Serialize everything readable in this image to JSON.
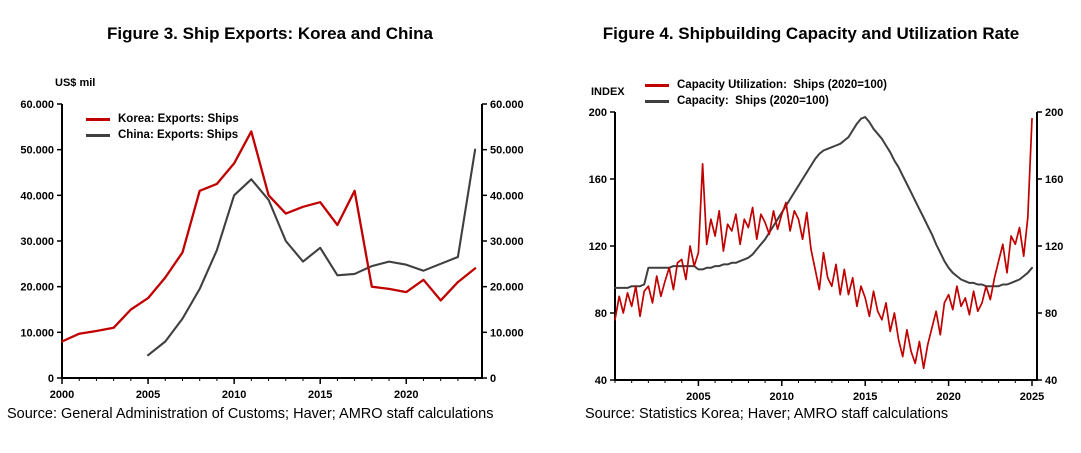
{
  "chart_data": [
    {
      "type": "line",
      "title": "Figure 3. Ship Exports: Korea and China",
      "unit_label": "US$ mil",
      "source": "Source: General Administration of Customs; Haver; AMRO staff calculations",
      "x_range": [
        2000,
        2024.4
      ],
      "ylim": [
        0,
        60000
      ],
      "y_ticks": [
        0,
        10000,
        20000,
        30000,
        40000,
        50000,
        60000
      ],
      "y_tick_labels": [
        "0",
        "10.000",
        "20.000",
        "30.000",
        "40.000",
        "50.000",
        "60.000"
      ],
      "x_ticks": [
        2000,
        2005,
        2010,
        2015,
        2020
      ],
      "legend_position": "top-left-inside",
      "grid": false,
      "series": [
        {
          "name": "Korea: Exports: Ships",
          "color": "#C00000",
          "line_width": 2.3,
          "x_start": 2000,
          "x_step": 1,
          "values": [
            8000,
            9700,
            10300,
            11000,
            15000,
            17500,
            22000,
            27500,
            41000,
            42500,
            47000,
            54000,
            40000,
            36000,
            37500,
            38500,
            33500,
            41000,
            20000,
            19500,
            18800,
            21500,
            17000,
            21000,
            24000
          ]
        },
        {
          "name": "China: Exports: Ships",
          "color": "#3F3F3F",
          "line_width": 2.1,
          "x_start": 2005,
          "x_step": 1,
          "values": [
            5000,
            8000,
            13000,
            19500,
            28000,
            40000,
            43500,
            39000,
            30000,
            25500,
            28500,
            22500,
            22800,
            24500,
            25500,
            24800,
            23500,
            25000,
            26500,
            50000
          ]
        }
      ]
    },
    {
      "type": "line",
      "title": "Figure 4. Shipbuilding Capacity and Utilization Rate",
      "unit_label": "INDEX",
      "source": "Source: Statistics Korea; Haver; AMRO staff calculations",
      "x_range": [
        2000,
        2025.3
      ],
      "ylim": [
        40,
        200
      ],
      "y_ticks": [
        40,
        80,
        120,
        160,
        200
      ],
      "y_tick_labels": [
        "40",
        "80",
        "120",
        "160",
        "200"
      ],
      "x_ticks": [
        2005,
        2010,
        2015,
        2020,
        2025
      ],
      "legend_position": "top-outside",
      "grid": false,
      "series": [
        {
          "name": "Capacity Utilization:  Ships (2020=100)",
          "color": "#C00000",
          "line_width": 1.7,
          "x_start": 2000,
          "x_step": 0.25,
          "values": [
            76,
            90,
            80,
            92,
            84,
            96,
            78,
            93,
            96,
            86,
            102,
            90,
            99,
            107,
            94,
            110,
            112,
            100,
            120,
            108,
            116,
            169,
            121,
            136,
            126,
            141,
            117,
            133,
            129,
            139,
            121,
            136,
            131,
            143,
            124,
            139,
            134,
            127,
            141,
            130,
            139,
            146,
            129,
            141,
            136,
            124,
            140,
            118,
            106,
            94,
            116,
            101,
            96,
            109,
            91,
            106,
            91,
            101,
            84,
            96,
            89,
            78,
            93,
            81,
            76,
            86,
            69,
            80,
            64,
            54,
            70,
            57,
            50,
            63,
            47,
            61,
            71,
            81,
            67,
            86,
            91,
            82,
            96,
            84,
            89,
            79,
            93,
            81,
            86,
            96,
            88,
            101,
            111,
            121,
            104,
            126,
            121,
            131,
            114,
            137,
            196
          ]
        },
        {
          "name": "Capacity:  Ships (2020=100)",
          "color": "#3F3F3F",
          "line_width": 2,
          "x_start": 2000,
          "x_step": 0.25,
          "values": [
            95,
            95,
            95,
            95,
            96,
            96,
            96,
            97,
            107,
            107,
            107,
            107,
            107,
            107,
            108,
            108,
            108,
            108,
            108,
            108,
            106,
            106,
            107,
            107,
            108,
            108,
            109,
            109,
            110,
            110,
            111,
            112,
            113,
            115,
            118,
            121,
            124,
            128,
            132,
            136,
            140,
            144,
            148,
            152,
            156,
            160,
            164,
            168,
            172,
            175,
            177,
            178,
            179,
            180,
            181,
            183,
            185,
            189,
            193,
            196,
            197,
            194,
            190,
            187,
            184,
            180,
            176,
            171,
            167,
            162,
            157,
            152,
            147,
            142,
            137,
            132,
            127,
            121,
            116,
            111,
            107,
            104,
            102,
            100,
            99,
            98,
            98,
            97,
            97,
            96,
            96,
            96,
            96,
            97,
            97,
            98,
            99,
            100,
            102,
            104,
            107
          ]
        }
      ]
    }
  ]
}
